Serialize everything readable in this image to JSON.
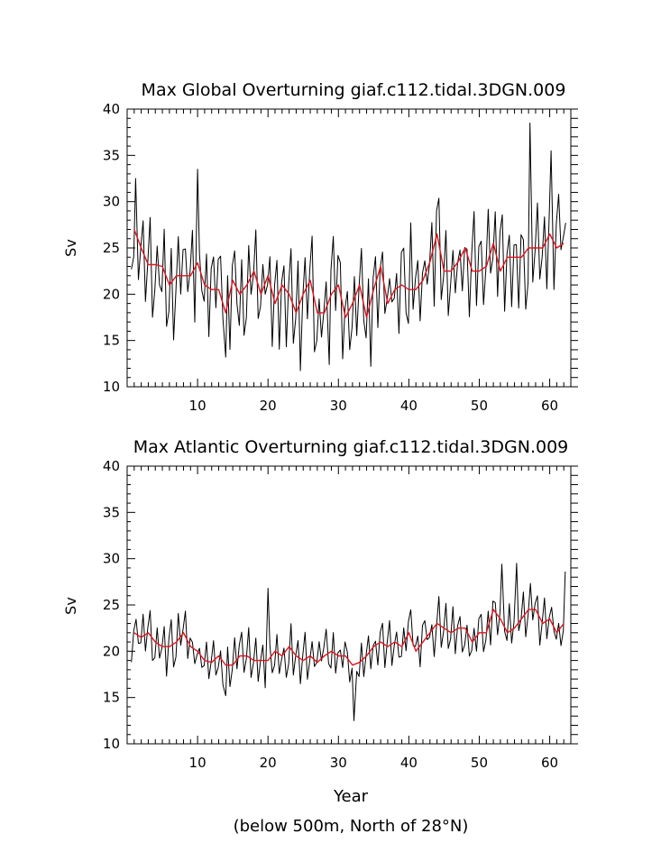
{
  "colors": {
    "annual": "#000000",
    "monthly_trace": "#000000",
    "mean": "#e0141e",
    "background": "#ffffff"
  },
  "footer_note": "(below 500m, North of 28°N)",
  "chart_data": [
    {
      "type": "line",
      "title": "Max Global Overturning giaf.c112.tidal.3DGN.009",
      "xlabel": "",
      "ylabel": "Sv",
      "xlim": [
        0,
        63
      ],
      "ylim": [
        10,
        40
      ],
      "xticks": [
        10,
        20,
        30,
        40,
        50,
        60
      ],
      "yticks": [
        10,
        15,
        20,
        25,
        30,
        35,
        40
      ],
      "grid": false,
      "x": [
        1,
        2,
        3,
        4,
        5,
        6,
        7,
        8,
        9,
        10,
        11,
        12,
        13,
        14,
        15,
        16,
        17,
        18,
        19,
        20,
        21,
        22,
        23,
        24,
        25,
        26,
        27,
        28,
        29,
        30,
        31,
        32,
        33,
        34,
        35,
        36,
        37,
        38,
        39,
        40,
        41,
        42,
        43,
        44,
        45,
        46,
        47,
        48,
        49,
        50,
        51,
        52,
        53,
        54,
        55,
        56,
        57,
        58,
        59,
        60,
        61,
        62
      ],
      "series": [
        {
          "style": "monthly-black",
          "values": [
            27,
            25,
            23.2,
            23.2,
            23,
            21,
            22,
            22,
            22,
            23.4,
            21,
            20.5,
            20.5,
            18,
            21.5,
            20,
            21,
            22.5,
            20,
            22,
            19,
            21,
            20,
            18,
            20,
            21.5,
            18,
            18,
            20,
            21,
            17.5,
            19,
            21,
            17.5,
            20.5,
            23,
            19,
            20.5,
            21,
            20.5,
            20.5,
            21.5,
            23.5,
            26.5,
            22.5,
            22.5,
            23.5,
            25,
            22.5,
            22.5,
            23,
            25.5,
            22.5,
            24,
            24,
            24,
            25,
            25,
            25,
            26.5,
            25,
            25.5
          ],
          "amplitude": 6.5,
          "spikes": [
            {
              "x": 57.2,
              "y": 38.5
            },
            {
              "x": 10,
              "y": 33.5
            },
            {
              "x": 1.2,
              "y": 32.5
            },
            {
              "x": 60.2,
              "y": 35.5
            },
            {
              "x": 28.7,
              "y": 12.4
            },
            {
              "x": 14,
              "y": 13.2
            }
          ]
        },
        {
          "style": "annual-red",
          "values": [
            27,
            25,
            23.2,
            23.2,
            23,
            21,
            22,
            22,
            22,
            23.4,
            21,
            20.5,
            20.5,
            18,
            21.5,
            20,
            21,
            22.5,
            20,
            22,
            19,
            21,
            20,
            18,
            20,
            21.5,
            18,
            18,
            20,
            21,
            17.5,
            19,
            21,
            17.5,
            20.5,
            23,
            19,
            20.5,
            21,
            20.5,
            20.5,
            21.5,
            23.5,
            26.5,
            22.5,
            22.5,
            23.5,
            25,
            22.5,
            22.5,
            23,
            25.5,
            22.5,
            24,
            24,
            24,
            25,
            25,
            25,
            26.5,
            25,
            25.5
          ]
        }
      ]
    },
    {
      "type": "line",
      "title": "Max Atlantic Overturning giaf.c112.tidal.3DGN.009",
      "xlabel": "Year",
      "ylabel": "Sv",
      "xlim": [
        0,
        63
      ],
      "ylim": [
        10,
        40
      ],
      "xticks": [
        10,
        20,
        30,
        40,
        50,
        60
      ],
      "yticks": [
        10,
        15,
        20,
        25,
        30,
        35,
        40
      ],
      "grid": false,
      "x": [
        1,
        2,
        3,
        4,
        5,
        6,
        7,
        8,
        9,
        10,
        11,
        12,
        13,
        14,
        15,
        16,
        17,
        18,
        19,
        20,
        21,
        22,
        23,
        24,
        25,
        26,
        27,
        28,
        29,
        30,
        31,
        32,
        33,
        34,
        35,
        36,
        37,
        38,
        39,
        40,
        41,
        42,
        43,
        44,
        45,
        46,
        47,
        48,
        49,
        50,
        51,
        52,
        53,
        54,
        55,
        56,
        57,
        58,
        59,
        60,
        61,
        62
      ],
      "series": [
        {
          "style": "monthly-black",
          "values": [
            22,
            21.5,
            22,
            21,
            20.5,
            20.5,
            21,
            22,
            20.5,
            20,
            19,
            18.8,
            19.5,
            18.5,
            18.5,
            19.5,
            19.5,
            19,
            19,
            19,
            20,
            19.5,
            20.5,
            19.5,
            19,
            19.5,
            18.8,
            19.5,
            20,
            19.5,
            19.5,
            18.5,
            18.8,
            19.5,
            20.5,
            21,
            20.5,
            21,
            20.5,
            22,
            20,
            21,
            22,
            23,
            22.5,
            22,
            22.5,
            22.5,
            21,
            22,
            22,
            24.5,
            23.5,
            22,
            22.5,
            23.5,
            24.5,
            24.5,
            23,
            23.5,
            22,
            23
          ],
          "amplitude": 2.8,
          "spikes": [
            {
              "x": 53.2,
              "y": 29.4
            },
            {
              "x": 55.3,
              "y": 29.5
            },
            {
              "x": 62.2,
              "y": 28.6
            },
            {
              "x": 20,
              "y": 26.8
            },
            {
              "x": 32.2,
              "y": 12.5
            },
            {
              "x": 14,
              "y": 15.2
            }
          ]
        },
        {
          "style": "annual-red",
          "values": [
            22,
            21.5,
            22,
            21,
            20.5,
            20.5,
            21,
            22,
            20.5,
            20,
            19,
            18.8,
            19.5,
            18.5,
            18.5,
            19.5,
            19.5,
            19,
            19,
            19,
            20,
            19.5,
            20.5,
            19.5,
            19,
            19.5,
            18.8,
            19.5,
            20,
            19.5,
            19.5,
            18.5,
            18.8,
            19.5,
            20.5,
            21,
            20.5,
            21,
            20.5,
            22,
            20,
            21,
            22,
            23,
            22.5,
            22,
            22.5,
            22.5,
            21,
            22,
            22,
            24.5,
            23.5,
            22,
            22.5,
            23.5,
            24.5,
            24.5,
            23,
            23.5,
            22,
            23
          ]
        }
      ]
    }
  ]
}
